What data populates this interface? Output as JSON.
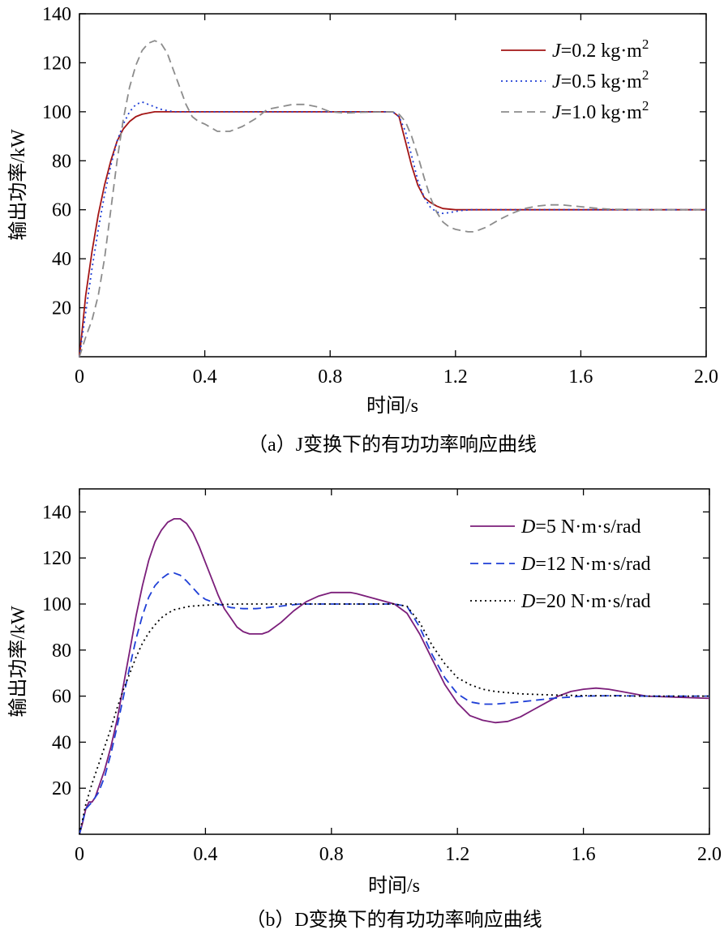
{
  "figure": {
    "panels": [
      {
        "caption": "（a）J变换下的有功功率响应曲线",
        "legend_entries": [
          {
            "italic": "J",
            "text": "=0.2 kg·m",
            "sup": "2"
          },
          {
            "italic": "J",
            "text": "=0.5 kg·m",
            "sup": "2"
          },
          {
            "italic": "J",
            "text": "=1.0 kg·m",
            "sup": "2"
          }
        ]
      },
      {
        "caption": "（b）D变换下的有功功率响应曲线",
        "legend_entries": [
          {
            "italic": "D",
            "text": "=5 N·m·s/rad"
          },
          {
            "italic": "D",
            "text": "=12 N·m·s/rad"
          },
          {
            "italic": "D",
            "text": "=20 N·m·s/rad"
          }
        ]
      }
    ]
  },
  "chart_data": [
    {
      "type": "line",
      "title": "（a）J变换下的有功功率响应曲线",
      "xlabel": "时间/s",
      "ylabel": "输出功率/kW",
      "xlim": [
        0,
        2.0
      ],
      "ylim": [
        0,
        140
      ],
      "xticks": [
        0,
        0.4,
        0.8,
        1.2,
        1.6,
        2.0
      ],
      "xtick_labels": [
        "0",
        "0.4",
        "0.8",
        "1.2",
        "1.6",
        "2.0"
      ],
      "yticks": [
        20,
        40,
        60,
        80,
        100,
        120,
        140
      ],
      "ytick_labels": [
        "20",
        "40",
        "60",
        "80",
        "100",
        "120",
        "140"
      ],
      "grid": false,
      "legend_position": "top-right",
      "series": [
        {
          "name": "J=0.2 kg·m2",
          "color": "#a31515",
          "dash": "solid",
          "x": [
            0,
            0.02,
            0.04,
            0.06,
            0.08,
            0.1,
            0.12,
            0.14,
            0.16,
            0.18,
            0.2,
            0.24,
            0.3,
            0.4,
            0.6,
            0.8,
            1.0,
            1.02,
            1.04,
            1.06,
            1.08,
            1.1,
            1.12,
            1.14,
            1.16,
            1.2,
            1.3,
            1.4,
            1.6,
            2.0
          ],
          "y": [
            0,
            25,
            43,
            58,
            70,
            80,
            88,
            93,
            96,
            98,
            99,
            100,
            100,
            100,
            100,
            100,
            100,
            98,
            88,
            78,
            70,
            65,
            63,
            61.5,
            60.5,
            60,
            60,
            60,
            60,
            60
          ]
        },
        {
          "name": "J=0.5 kg·m2",
          "color": "#1f3fd6",
          "dash": "dot",
          "x": [
            0,
            0.02,
            0.04,
            0.06,
            0.08,
            0.1,
            0.12,
            0.14,
            0.16,
            0.18,
            0.2,
            0.22,
            0.24,
            0.26,
            0.3,
            0.35,
            0.4,
            0.6,
            0.8,
            1.0,
            1.02,
            1.04,
            1.06,
            1.08,
            1.1,
            1.12,
            1.14,
            1.16,
            1.18,
            1.2,
            1.22,
            1.25,
            1.3,
            1.4,
            1.6,
            2.0
          ],
          "y": [
            0,
            18,
            36,
            52,
            66,
            78,
            88,
            95,
            100,
            103,
            104,
            103,
            102,
            101,
            100,
            100,
            100,
            100,
            100,
            100,
            98,
            92,
            82,
            72,
            65,
            61,
            59,
            58.5,
            58.8,
            59.3,
            59.7,
            60,
            60,
            60,
            60,
            60
          ]
        },
        {
          "name": "J=1.0 kg·m2",
          "color": "#8c8c8c",
          "dash": "dash",
          "x": [
            0,
            0.02,
            0.04,
            0.06,
            0.08,
            0.1,
            0.12,
            0.14,
            0.16,
            0.18,
            0.2,
            0.22,
            0.24,
            0.26,
            0.28,
            0.3,
            0.32,
            0.34,
            0.36,
            0.38,
            0.4,
            0.44,
            0.48,
            0.52,
            0.56,
            0.6,
            0.64,
            0.68,
            0.72,
            0.76,
            0.8,
            0.85,
            0.9,
            1.0,
            1.02,
            1.04,
            1.06,
            1.08,
            1.1,
            1.12,
            1.14,
            1.16,
            1.18,
            1.2,
            1.22,
            1.24,
            1.26,
            1.3,
            1.34,
            1.38,
            1.42,
            1.46,
            1.5,
            1.54,
            1.58,
            1.62,
            1.66,
            1.7,
            1.8,
            2.0
          ],
          "y": [
            0,
            8,
            15,
            25,
            40,
            60,
            80,
            97,
            110,
            119,
            125,
            128,
            129,
            128,
            124,
            117,
            110,
            103,
            98,
            96,
            95,
            92,
            92,
            94,
            97,
            101,
            102,
            103,
            103,
            102,
            100,
            99.5,
            99.8,
            100,
            99,
            96,
            90,
            82,
            73,
            65,
            59,
            55,
            53,
            52,
            51.5,
            51,
            51,
            53,
            56,
            58.5,
            60.5,
            61.5,
            62,
            62,
            61.5,
            61,
            60.5,
            60.2,
            60,
            60
          ]
        }
      ]
    },
    {
      "type": "line",
      "title": "（b）D变换下的有功功率响应曲线",
      "xlabel": "时间/s",
      "ylabel": "输出功率/kW",
      "xlim": [
        0,
        2.0
      ],
      "ylim": [
        0,
        150
      ],
      "xticks": [
        0,
        0.4,
        0.8,
        1.2,
        1.6,
        2.0
      ],
      "xtick_labels": [
        "0",
        "0.4",
        "0.8",
        "1.2",
        "1.6",
        "2.0"
      ],
      "yticks": [
        20,
        40,
        60,
        80,
        100,
        120,
        140
      ],
      "ytick_labels": [
        "20",
        "40",
        "60",
        "80",
        "100",
        "120",
        "140"
      ],
      "grid": false,
      "legend_position": "top-right",
      "series": [
        {
          "name": "D=5 N·m·s/rad",
          "color": "#7b1e7a",
          "dash": "solid",
          "x": [
            0,
            0.01,
            0.02,
            0.03,
            0.04,
            0.05,
            0.06,
            0.08,
            0.1,
            0.12,
            0.14,
            0.16,
            0.18,
            0.2,
            0.22,
            0.24,
            0.26,
            0.28,
            0.3,
            0.32,
            0.34,
            0.36,
            0.38,
            0.4,
            0.42,
            0.44,
            0.46,
            0.48,
            0.5,
            0.52,
            0.54,
            0.56,
            0.58,
            0.6,
            0.64,
            0.68,
            0.72,
            0.76,
            0.8,
            0.84,
            0.86,
            0.88,
            0.92,
            0.96,
            1.0,
            1.04,
            1.08,
            1.12,
            1.16,
            1.2,
            1.24,
            1.28,
            1.32,
            1.36,
            1.4,
            1.44,
            1.48,
            1.52,
            1.56,
            1.6,
            1.64,
            1.68,
            1.72,
            1.76,
            1.8,
            1.9,
            2.0
          ],
          "y": [
            0,
            5,
            11,
            14,
            14,
            16,
            20,
            28,
            38,
            50,
            65,
            80,
            95,
            108,
            119,
            127,
            132,
            135.5,
            137,
            137,
            135,
            131,
            125,
            118,
            111,
            104,
            98,
            94,
            90,
            88,
            87,
            87,
            87,
            88,
            92,
            97,
            101,
            103.5,
            105,
            105,
            105,
            104.5,
            103,
            101.5,
            100,
            96,
            87,
            76,
            65,
            57,
            51.5,
            49.5,
            48.5,
            49,
            51,
            54,
            57,
            60,
            62,
            63,
            63.5,
            63,
            62,
            61,
            60,
            59.5,
            59
          ]
        },
        {
          "name": "D=12 N·m·s/rad",
          "color": "#1f3fd6",
          "dash": "dash",
          "x": [
            0,
            0.02,
            0.04,
            0.06,
            0.08,
            0.1,
            0.12,
            0.14,
            0.16,
            0.18,
            0.2,
            0.22,
            0.24,
            0.26,
            0.28,
            0.3,
            0.32,
            0.34,
            0.36,
            0.38,
            0.4,
            0.44,
            0.48,
            0.52,
            0.56,
            0.6,
            0.7,
            0.8,
            0.9,
            1.0,
            1.04,
            1.08,
            1.12,
            1.16,
            1.2,
            1.24,
            1.28,
            1.32,
            1.36,
            1.4,
            1.5,
            1.6,
            1.7,
            1.8,
            2.0
          ],
          "y": [
            0,
            11,
            14,
            18,
            25,
            35,
            47,
            60,
            73,
            85,
            95,
            103,
            108,
            111,
            113,
            113.5,
            112.5,
            110,
            107,
            104,
            102,
            100,
            98.5,
            98,
            98,
            98.5,
            100,
            100,
            100,
            100,
            99,
            90,
            78,
            68,
            61,
            57.5,
            56.5,
            56.5,
            57,
            57.5,
            59,
            60,
            60.2,
            60,
            60
          ]
        },
        {
          "name": "D=20 N·m·s/rad",
          "color": "#000000",
          "dash": "dot",
          "x": [
            0,
            0.02,
            0.04,
            0.06,
            0.08,
            0.1,
            0.12,
            0.14,
            0.16,
            0.18,
            0.2,
            0.22,
            0.24,
            0.26,
            0.28,
            0.3,
            0.35,
            0.4,
            0.5,
            0.6,
            0.8,
            1.0,
            1.04,
            1.08,
            1.12,
            1.16,
            1.2,
            1.24,
            1.28,
            1.32,
            1.4,
            1.5,
            1.6,
            1.8,
            2.0
          ],
          "y": [
            0,
            13,
            22,
            30,
            38,
            46,
            55,
            63,
            70,
            77,
            83,
            87.5,
            91,
            94,
            96,
            97.5,
            99,
            99.5,
            100,
            100,
            100,
            100,
            99,
            92,
            82,
            74,
            68,
            65,
            63,
            62,
            61,
            60.5,
            60.2,
            60,
            60
          ]
        }
      ]
    }
  ]
}
